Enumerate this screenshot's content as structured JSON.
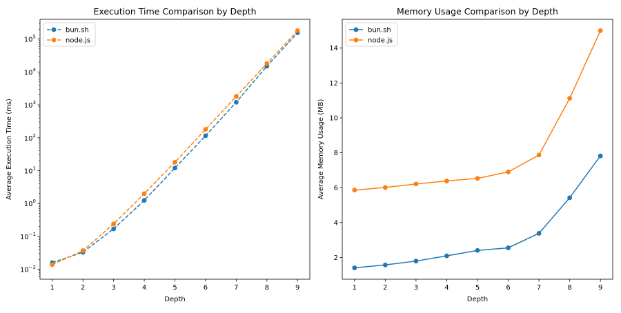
{
  "colors": {
    "bun": "#1f77b4",
    "node": "#ff7f0e"
  },
  "chart_data": [
    {
      "type": "line",
      "title": "Execution Time Comparison by Depth",
      "xlabel": "Depth",
      "ylabel": "Average Execution Time (ms)",
      "yscale": "log",
      "x": [
        1,
        2,
        3,
        4,
        5,
        6,
        7,
        8,
        9
      ],
      "xlim": [
        0.6,
        9.4
      ],
      "ylim_log10": [
        -2.3,
        5.6
      ],
      "y_tick_labels": [
        {
          "exp": -2,
          "base": "10",
          "sup": "−2"
        },
        {
          "exp": -1,
          "base": "10",
          "sup": "−1"
        },
        {
          "exp": 0,
          "base": "10",
          "sup": "0"
        },
        {
          "exp": 1,
          "base": "10",
          "sup": "1"
        },
        {
          "exp": 2,
          "base": "10",
          "sup": "2"
        },
        {
          "exp": 3,
          "base": "10",
          "sup": "3"
        },
        {
          "exp": 4,
          "base": "10",
          "sup": "4"
        },
        {
          "exp": 5,
          "base": "10",
          "sup": "5"
        }
      ],
      "linestyle": "dashed",
      "legend_location": "upper-left",
      "series": [
        {
          "name": "bun.sh",
          "color_key": "bun",
          "values": [
            0.016,
            0.033,
            0.17,
            1.25,
            12,
            115,
            1200,
            15000,
            155000
          ]
        },
        {
          "name": "node.js",
          "color_key": "node",
          "values": [
            0.014,
            0.037,
            0.24,
            2.0,
            18,
            180,
            1800,
            18000,
            180000
          ]
        }
      ]
    },
    {
      "type": "line",
      "title": "Memory Usage Comparison by Depth",
      "xlabel": "Depth",
      "ylabel": "Average Memory Usage (MB)",
      "yscale": "linear",
      "x": [
        1,
        2,
        3,
        4,
        5,
        6,
        7,
        8,
        9
      ],
      "xlim": [
        0.6,
        9.4
      ],
      "ylim": [
        0.75,
        15.65
      ],
      "y_ticks": [
        2,
        4,
        6,
        8,
        10,
        12,
        14
      ],
      "linestyle": "solid",
      "legend_location": "upper-left",
      "series": [
        {
          "name": "bun.sh",
          "color_key": "bun",
          "values": [
            1.4,
            1.57,
            1.79,
            2.09,
            2.4,
            2.55,
            3.38,
            5.42,
            7.82
          ]
        },
        {
          "name": "node.js",
          "color_key": "node",
          "values": [
            5.86,
            6.01,
            6.21,
            6.38,
            6.53,
            6.9,
            7.87,
            11.12,
            15.0
          ]
        }
      ]
    }
  ]
}
